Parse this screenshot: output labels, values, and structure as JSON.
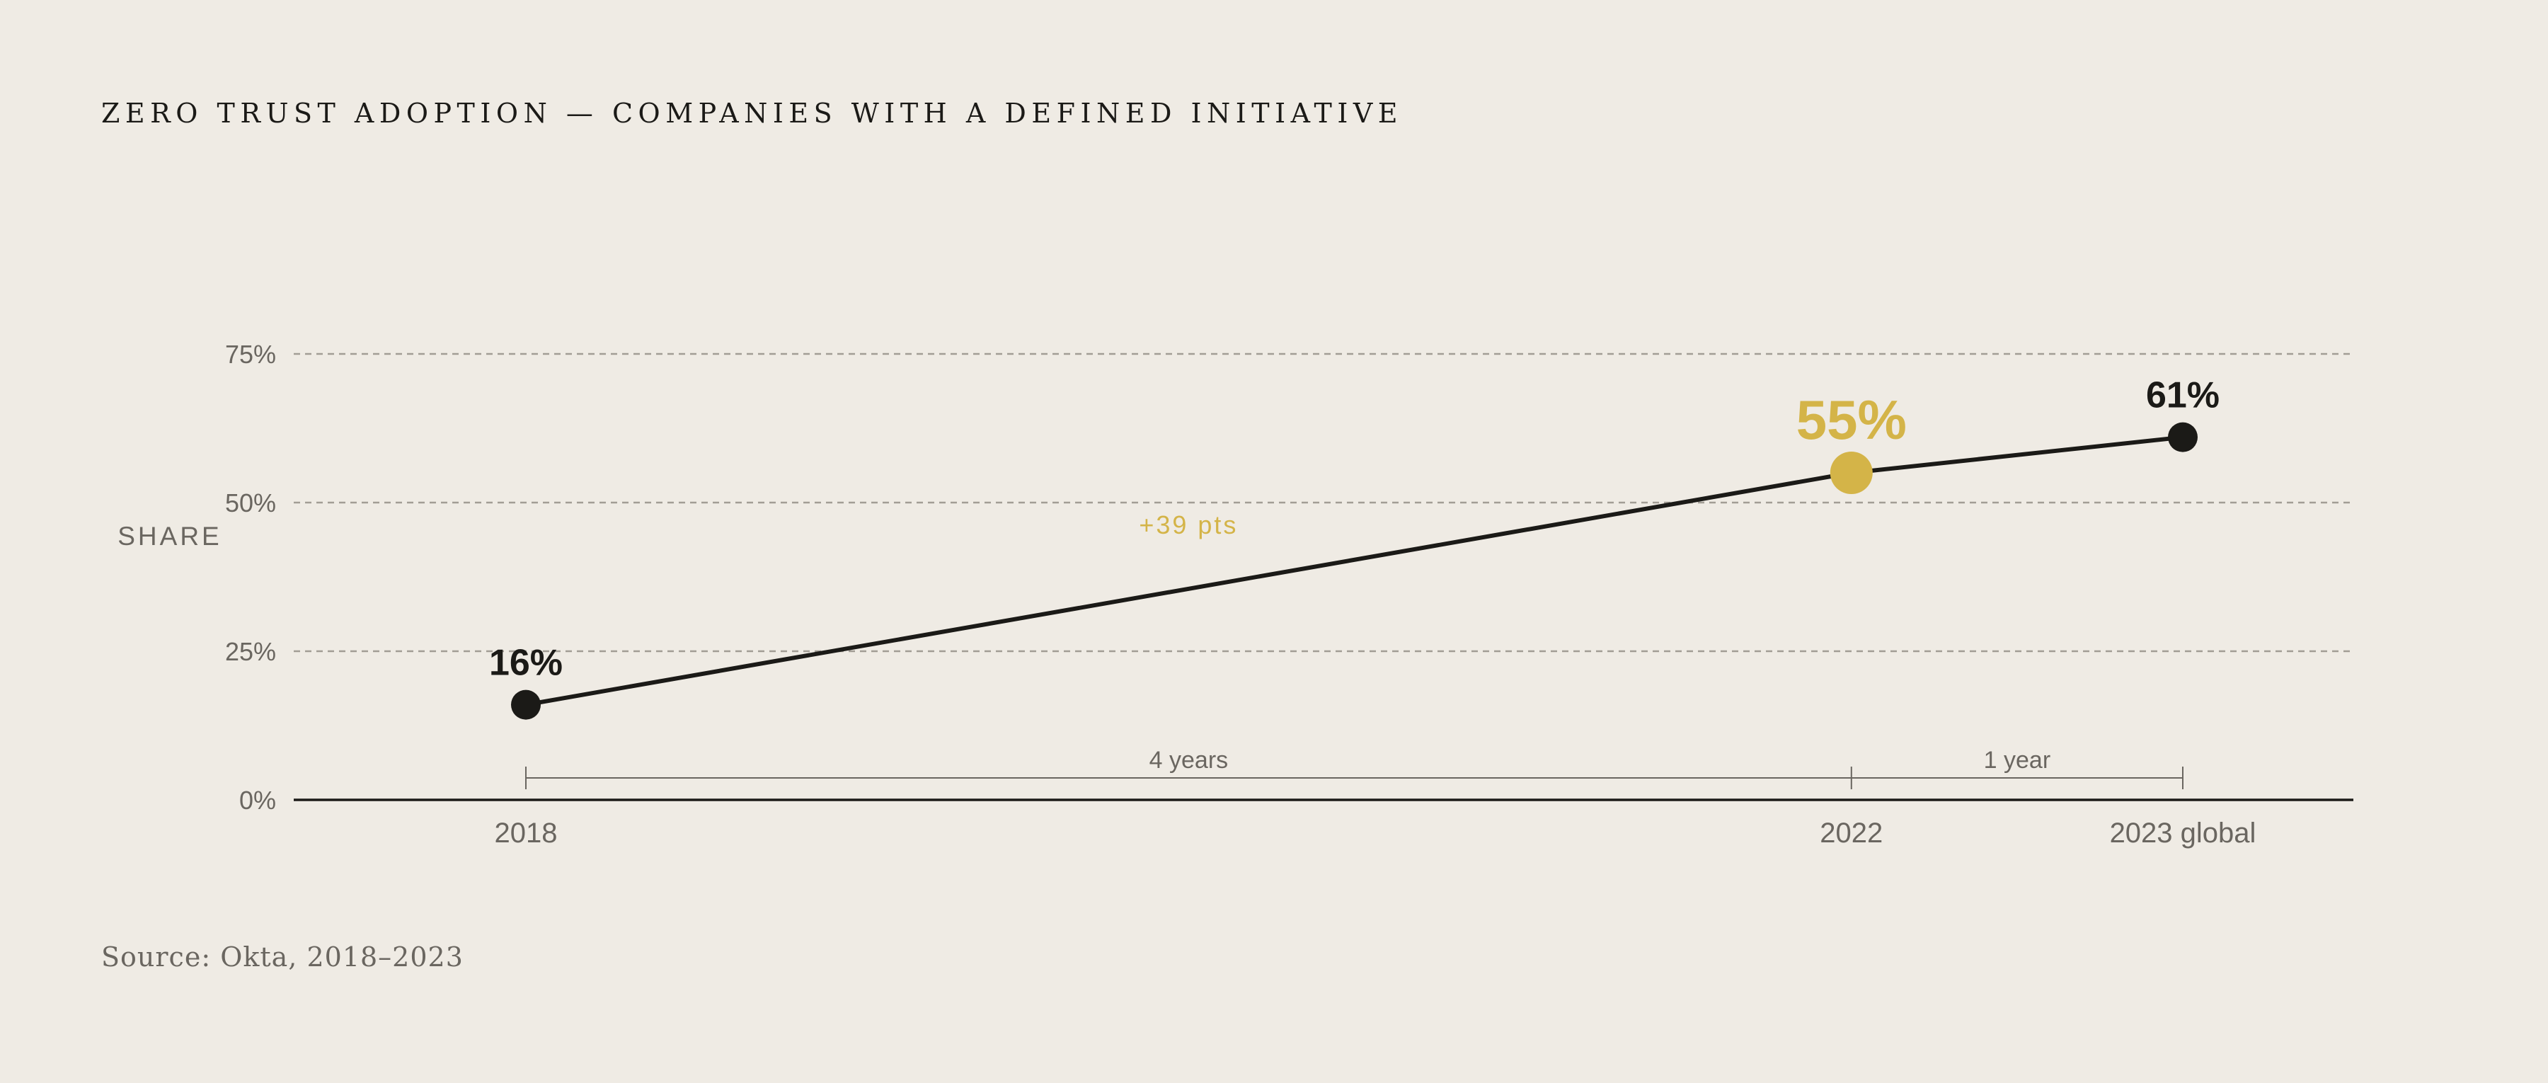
{
  "title": "ZERO TRUST ADOPTION — COMPANIES WITH A DEFINED INITIATIVE",
  "source": "Source: Okta, 2018–2023",
  "colors": {
    "background": "#efebe4",
    "line": "#1b1a17",
    "highlight": "#d4b448",
    "muted": "#6a6660",
    "grid": "#a29d95"
  },
  "chart_data": {
    "type": "line",
    "title": "ZERO TRUST ADOPTION — COMPANIES WITH A DEFINED INITIATIVE",
    "ylabel": "SHARE",
    "xlabel": "",
    "ylim": [
      0,
      75
    ],
    "yticks": [
      0,
      25,
      50,
      75
    ],
    "ytick_labels": [
      "0%",
      "25%",
      "50%",
      "75%"
    ],
    "grid": "horizontal dashed",
    "categories": [
      "2018",
      "2022",
      "2023 global"
    ],
    "x": [
      2018,
      2022,
      2023
    ],
    "values": [
      16,
      55,
      61
    ],
    "value_labels": [
      "16%",
      "55%",
      "61%"
    ],
    "highlight_index": 1,
    "annotations": [
      {
        "text": "+39 pts",
        "from": "2018",
        "to": "2022"
      }
    ],
    "intervals": [
      {
        "from": "2018",
        "to": "2022",
        "label": "4 years"
      },
      {
        "from": "2022",
        "to": "2023 global",
        "label": "1 year"
      }
    ]
  }
}
